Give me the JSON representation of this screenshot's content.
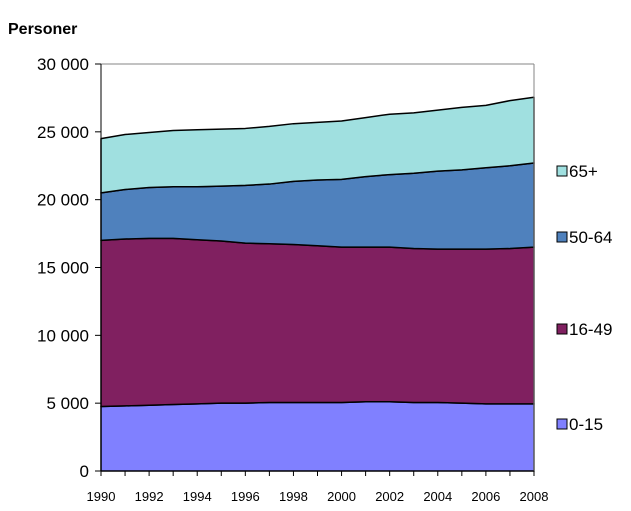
{
  "chart_data": {
    "type": "area",
    "stacked": true,
    "title": "",
    "ylabel": "Personer",
    "xlabel": "",
    "ylim": [
      0,
      30000
    ],
    "yticks": [
      0,
      5000,
      10000,
      15000,
      20000,
      25000,
      30000
    ],
    "ytick_labels": [
      "0",
      "5 000",
      "10 000",
      "15 000",
      "20 000",
      "25 000",
      "30 000"
    ],
    "x": [
      1990,
      1991,
      1992,
      1993,
      1994,
      1995,
      1996,
      1997,
      1998,
      1999,
      2000,
      2001,
      2002,
      2003,
      2004,
      2005,
      2006,
      2007,
      2008
    ],
    "xtick_labels": [
      "1990",
      "1992",
      "1994",
      "1996",
      "1998",
      "2000",
      "2002",
      "2004",
      "2006",
      "2008"
    ],
    "grid": false,
    "legend_position": "right",
    "series": [
      {
        "name": "0-15",
        "color": "#8080ff",
        "values": [
          4750,
          4800,
          4850,
          4900,
          4950,
          5000,
          5000,
          5050,
          5050,
          5050,
          5050,
          5100,
          5100,
          5050,
          5050,
          5000,
          4950,
          4950,
          4950
        ]
      },
      {
        "name": "16-49",
        "color": "#802060",
        "values": [
          12250,
          12300,
          12300,
          12250,
          12100,
          11950,
          11800,
          11700,
          11650,
          11550,
          11450,
          11400,
          11400,
          11350,
          11300,
          11350,
          11400,
          11450,
          11550
        ]
      },
      {
        "name": "50-64",
        "color": "#4f81bd",
        "values": [
          3500,
          3650,
          3750,
          3800,
          3900,
          4050,
          4250,
          4400,
          4650,
          4850,
          5000,
          5200,
          5350,
          5550,
          5750,
          5850,
          6000,
          6100,
          6200
        ]
      },
      {
        "name": "65+",
        "color": "#a0e0e0",
        "values": [
          4000,
          4050,
          4050,
          4150,
          4200,
          4200,
          4200,
          4250,
          4250,
          4250,
          4300,
          4350,
          4450,
          4450,
          4500,
          4600,
          4600,
          4800,
          4850
        ]
      }
    ]
  }
}
